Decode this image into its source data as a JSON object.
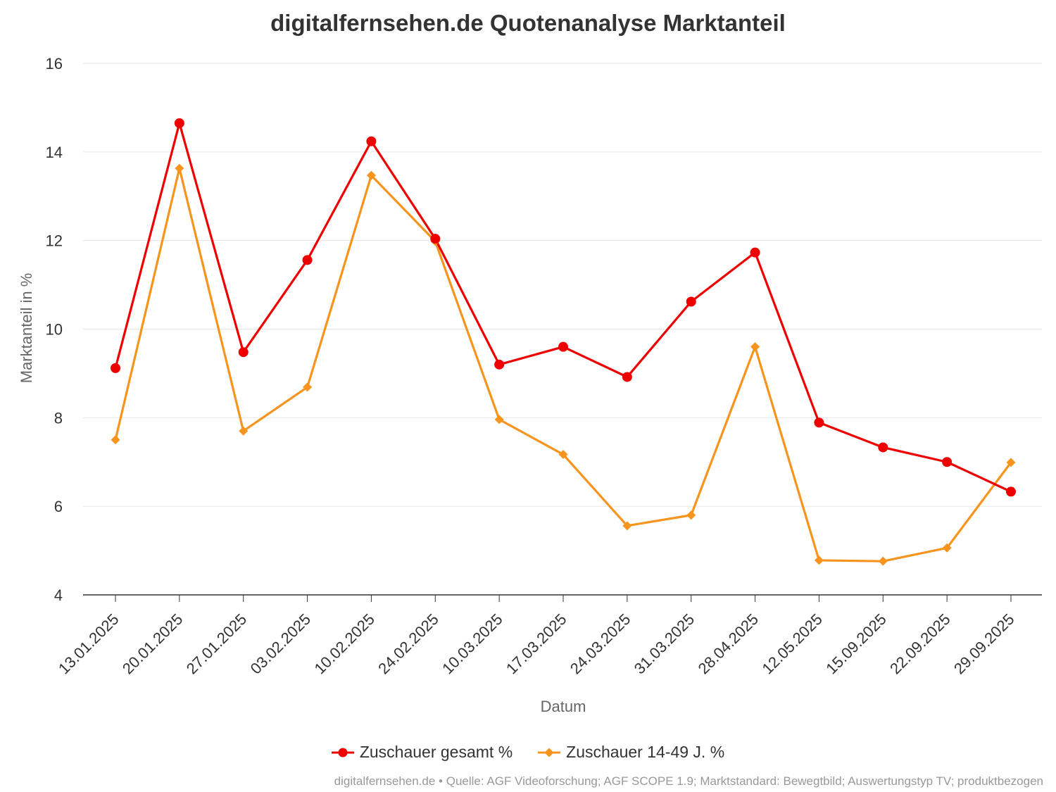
{
  "chart_data": {
    "type": "line",
    "title": "digitalfernsehen.de Quotenanalyse Marktanteil",
    "xlabel": "Datum",
    "ylabel": "Marktanteil in %",
    "ylim": [
      4,
      16
    ],
    "yticks": [
      "4",
      "6",
      "8",
      "10",
      "12",
      "14",
      "16"
    ],
    "grid": true,
    "legend_position": "bottom",
    "categories": [
      "13.01.2025",
      "20.01.2025",
      "27.01.2025",
      "03.02.2025",
      "10.02.2025",
      "24.02.2025",
      "10.03.2025",
      "17.03.2025",
      "24.03.2025",
      "31.03.2025",
      "28.04.2025",
      "12.05.2025",
      "15.09.2025",
      "22.09.2025",
      "29.09.2025"
    ],
    "series": [
      {
        "name": "Zuschauer gesamt %",
        "color": "#ee0000",
        "marker": "circle",
        "values": [
          9.12,
          14.65,
          9.48,
          11.56,
          14.24,
          12.04,
          9.2,
          9.6,
          8.92,
          10.62,
          11.73,
          7.89,
          7.33,
          7.0,
          6.33
        ]
      },
      {
        "name": "Zuschauer 14-49 J. %",
        "color": "#f7941d",
        "marker": "diamond",
        "values": [
          7.5,
          13.63,
          7.7,
          8.69,
          13.47,
          11.98,
          7.96,
          7.17,
          5.56,
          5.8,
          9.6,
          4.78,
          4.76,
          5.06,
          6.99
        ]
      }
    ]
  },
  "credits": "digitalfernsehen.de • Quelle: AGF Videoforschung; AGF SCOPE 1.9; Marktstandard: Bewegtbild; Auswertungstyp TV; produktbezogen"
}
